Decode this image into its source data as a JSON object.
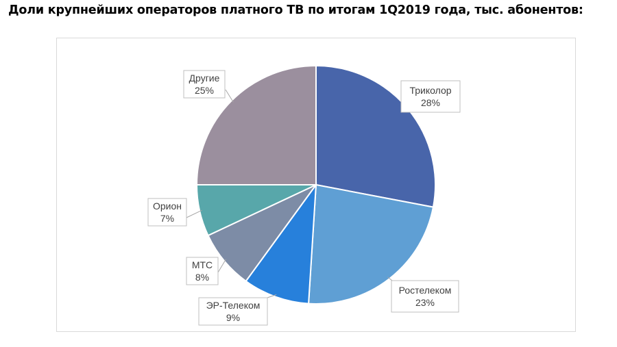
{
  "title": "Доли крупнейших операторов платного ТВ по итогам 1Q2019 года, тыс. абонентов:",
  "chart_data": {
    "type": "pie",
    "title": "Доли крупнейших операторов платного ТВ по итогам 1Q2019 года, тыс. абонентов:",
    "start_angle_deg": 0,
    "direction": "clockwise",
    "legend": "none",
    "slices": [
      {
        "label": "Триколор",
        "value": 28,
        "pct_label": "28%",
        "color": "#4865AA"
      },
      {
        "label": "Ростелеком",
        "value": 23,
        "pct_label": "23%",
        "color": "#5F9FD4"
      },
      {
        "label": "ЭР-Телеком",
        "value": 9,
        "pct_label": "9%",
        "color": "#2780DB"
      },
      {
        "label": "МТС",
        "value": 8,
        "pct_label": "8%",
        "color": "#7D8CA6"
      },
      {
        "label": "Орион",
        "value": 7,
        "pct_label": "7%",
        "color": "#58A7AA"
      },
      {
        "label": "Другие",
        "value": 25,
        "pct_label": "25%",
        "color": "#9B8F9E"
      }
    ]
  }
}
